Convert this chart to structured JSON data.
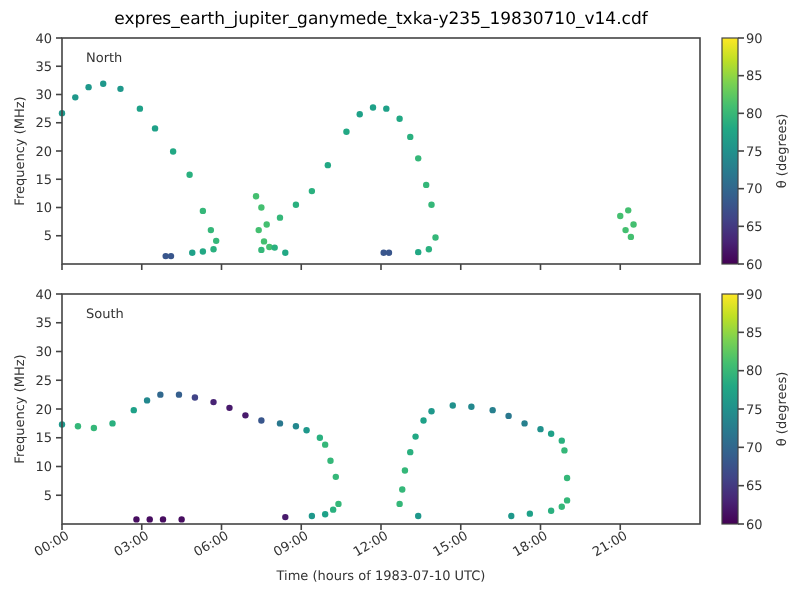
{
  "chart_data": [
    {
      "type": "scatter",
      "title": "expres_earth_jupiter_ganymede_txka-y235_19830710_v14.cdf",
      "ylabel": "Frequency (MHz)",
      "clabel": "θ (degrees)",
      "annotations": [
        "North"
      ],
      "marker": "circle",
      "tick_labels": "y",
      "xlim": [
        0,
        24
      ],
      "xticks": [
        0,
        3,
        6,
        9,
        12,
        15,
        18,
        21
      ],
      "ylim": [
        0,
        40
      ],
      "yticks": [
        5,
        10,
        15,
        20,
        25,
        30,
        35,
        40
      ],
      "clim": [
        60,
        90
      ],
      "cticks": [
        60,
        65,
        70,
        75,
        80,
        85,
        90
      ],
      "x": [
        0,
        0.5,
        1,
        1.55,
        2.2,
        2.93,
        3.5,
        4.18,
        4.8,
        5.3,
        5.6,
        5.8,
        5.7,
        5.3,
        4.9,
        3.9,
        4.1,
        7.3,
        7.5,
        7.7,
        7.4,
        7.6,
        7.8,
        7.5,
        8.2,
        8.8,
        9.4,
        10.0,
        10.7,
        11.2,
        11.7,
        12.2,
        12.7,
        13.1,
        13.4,
        13.7,
        13.9,
        14.05,
        13.8,
        13.4,
        12.1,
        12.3,
        8.4,
        8.0,
        21.0,
        21.3,
        21.5,
        21.2,
        21.4
      ],
      "values": [
        26.7,
        29.5,
        31.3,
        31.9,
        31.0,
        27.5,
        24,
        19.9,
        15.8,
        9.4,
        6,
        4.1,
        2.6,
        2.2,
        2.0,
        1.4,
        1.4,
        12,
        10,
        7,
        6,
        4,
        3,
        2.5,
        8.2,
        10.5,
        12.9,
        17.5,
        23.4,
        26.5,
        27.7,
        27.5,
        25.7,
        22.5,
        18.7,
        14,
        10.5,
        4.7,
        2.6,
        2.1,
        2.0,
        2.0,
        2.0,
        2.9,
        8.5,
        9.5,
        7,
        6,
        4.8
      ],
      "cvalues": [
        76,
        76,
        76,
        76,
        76,
        77,
        77,
        78,
        79,
        80,
        80,
        80,
        79,
        78,
        77,
        68,
        68,
        81,
        81,
        81,
        81,
        81,
        81,
        80,
        80,
        79,
        79,
        78,
        78,
        77,
        77,
        77,
        78,
        79,
        80,
        80,
        80,
        80,
        79,
        78,
        68,
        68,
        78,
        79,
        81,
        81,
        81,
        81,
        81
      ]
    },
    {
      "type": "scatter",
      "xlabel": "Time (hours of 1983-07-10 UTC)",
      "ylabel": "Frequency (MHz)",
      "clabel": "θ (degrees)",
      "annotations": [
        "South"
      ],
      "marker": "circle",
      "xlim": [
        0,
        24
      ],
      "xticks": [
        {
          "value": 0,
          "label": "00:00"
        },
        {
          "value": 3,
          "label": "03:00"
        },
        {
          "value": 6,
          "label": "06:00"
        },
        {
          "value": 9,
          "label": "09:00"
        },
        {
          "value": 12,
          "label": "12:00"
        },
        {
          "value": 15,
          "label": "15:00"
        },
        {
          "value": 18,
          "label": "18:00"
        },
        {
          "value": 21,
          "label": "21:00"
        }
      ],
      "ylim": [
        0,
        40
      ],
      "yticks": [
        5,
        10,
        15,
        20,
        25,
        30,
        35,
        40
      ],
      "clim": [
        60,
        90
      ],
      "cticks": [
        60,
        65,
        70,
        75,
        80,
        85,
        90
      ],
      "x": [
        0,
        0.6,
        1.2,
        1.9,
        2.7,
        3.2,
        3.7,
        4.4,
        5.0,
        5.7,
        6.3,
        6.9,
        7.5,
        8.2,
        8.8,
        9.2,
        9.7,
        9.9,
        10.1,
        10.3,
        10.4,
        10.2,
        9.9,
        9.4,
        8.4,
        2.8,
        3.3,
        3.8,
        4.5,
        12.7,
        12.8,
        12.9,
        13.1,
        13.3,
        13.6,
        13.9,
        14.7,
        15.4,
        16.2,
        16.8,
        17.4,
        18.0,
        18.4,
        18.8,
        18.9,
        19.0,
        19.0,
        18.8,
        18.4,
        17.6,
        16.9,
        13.4
      ],
      "values": [
        17.3,
        17.0,
        16.7,
        17.5,
        19.8,
        21.5,
        22.5,
        22.5,
        22.0,
        21.2,
        20.2,
        18.9,
        18.0,
        17.5,
        17.0,
        16.3,
        15.0,
        13.8,
        11.0,
        8.2,
        3.5,
        2.5,
        1.7,
        1.4,
        1.2,
        0.8,
        0.8,
        0.8,
        0.8,
        3.5,
        6,
        9.3,
        12.5,
        15.2,
        18,
        19.6,
        20.6,
        20.4,
        19.8,
        18.8,
        17.5,
        16.5,
        15.7,
        14.5,
        12.8,
        8,
        4.1,
        3,
        2.3,
        1.8,
        1.4,
        1.4
      ],
      "cvalues": [
        76,
        80,
        80,
        79,
        77,
        74,
        70,
        69,
        66,
        63,
        62,
        62,
        68,
        72,
        74,
        76,
        79,
        80,
        80,
        80,
        80,
        79,
        77,
        76,
        62,
        61,
        61,
        61,
        61,
        80,
        80,
        80,
        79,
        78,
        77,
        76,
        75,
        74,
        73,
        72,
        73,
        75,
        77,
        79,
        80,
        80,
        80,
        80,
        79,
        77,
        76,
        76
      ]
    }
  ]
}
